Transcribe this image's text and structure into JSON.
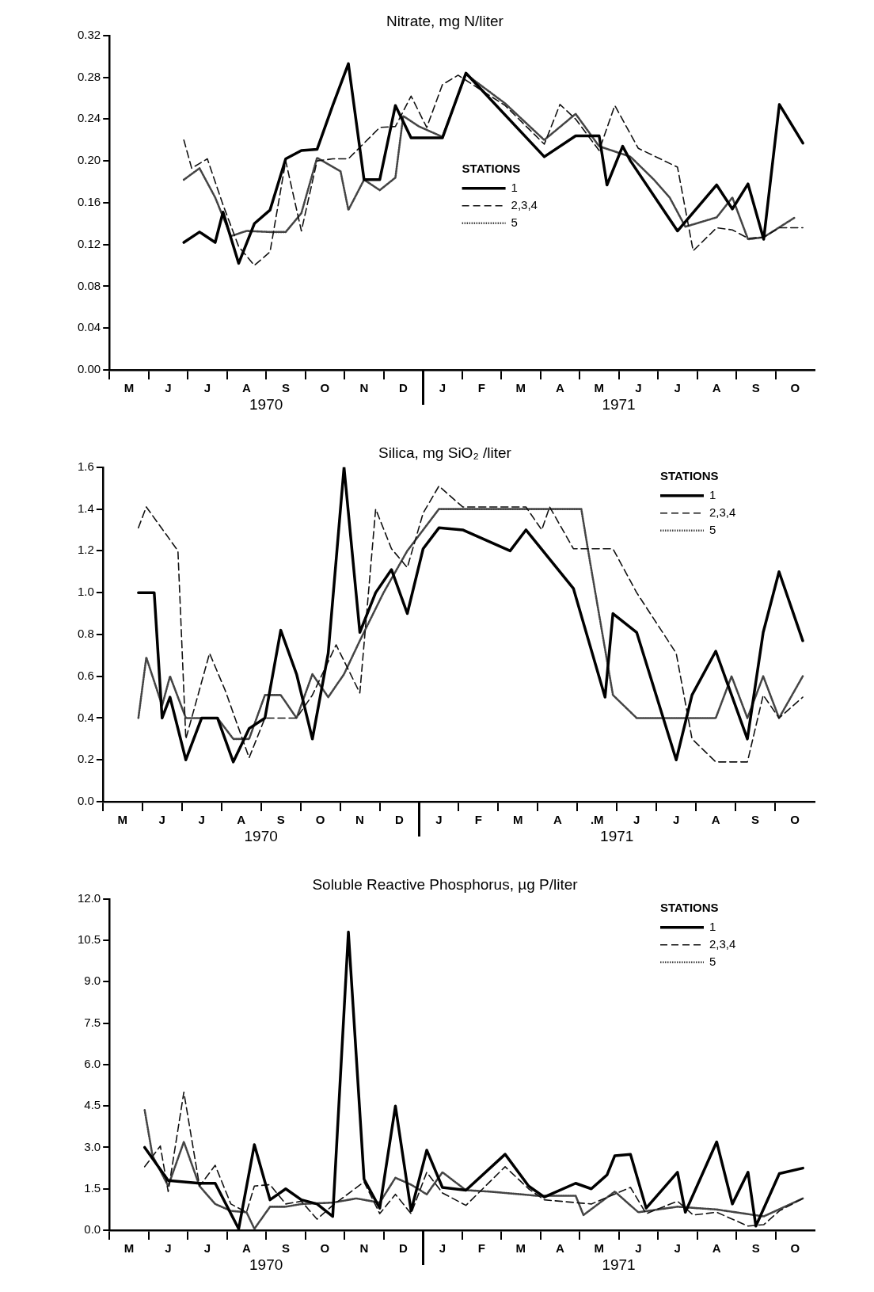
{
  "chart_data": [
    {
      "type": "line",
      "title": "Nitrate, mg N/liter",
      "legend": "center",
      "legend_title": "STATIONS",
      "grid": false,
      "categories": [
        null,
        null,
        "M",
        null,
        null,
        null,
        null,
        "J",
        null,
        null,
        null,
        null,
        "J",
        null,
        null,
        null,
        null,
        "A",
        null,
        null,
        null,
        null,
        "S",
        null,
        null,
        null,
        null,
        "O",
        null,
        null,
        null,
        null,
        "N",
        null,
        null,
        null,
        null,
        "D",
        null,
        null,
        null,
        null,
        "J",
        null,
        null,
        null,
        null,
        "F",
        null,
        null,
        null,
        null,
        "M",
        null,
        null,
        null,
        null,
        "A",
        null,
        null,
        null,
        null,
        "M",
        null,
        null,
        null,
        null,
        "J",
        null,
        null,
        null,
        null,
        "J",
        null,
        null,
        null,
        null,
        "A",
        null,
        null,
        null,
        null,
        "S",
        null,
        null,
        null,
        null,
        "O",
        null,
        null
      ],
      "ylim": [
        0,
        0.32
      ],
      "yticks": [
        {
          "value": 0,
          "label": "0.00"
        },
        {
          "value": 0.04,
          "label": "0.04"
        },
        {
          "value": 0.08,
          "label": "0.08"
        },
        {
          "value": 0.12,
          "label": "0.12"
        },
        {
          "value": 0.16,
          "label": "0.16"
        },
        {
          "value": 0.2,
          "label": "0.20"
        },
        {
          "value": 0.24,
          "label": "0.24"
        },
        {
          "value": 0.28,
          "label": "0.28"
        },
        {
          "value": 0.32,
          "label": "0.32"
        }
      ],
      "annotations": [
        "1970",
        "1971"
      ],
      "series": [
        {
          "name": "1",
          "color": "#000000",
          "line_style": "solid",
          "values": [
            null,
            null,
            null,
            null,
            null,
            null,
            null,
            null,
            null,
            0.122,
            null,
            0.132,
            null,
            0.122,
            0.151,
            null,
            0.102,
            null,
            0.14,
            null,
            0.153,
            null,
            0.202,
            null,
            0.21,
            null,
            0.211,
            null,
            0.253,
            null,
            0.293,
            null,
            0.182,
            null,
            0.182,
            null,
            0.253,
            null,
            0.222,
            null,
            null,
            null,
            0.222,
            null,
            null,
            0.284,
            null,
            null,
            null,
            null,
            null,
            null,
            null,
            null,
            null,
            0.204,
            null,
            null,
            null,
            0.224,
            null,
            null,
            0.224,
            0.177,
            null,
            0.214,
            0.2,
            null,
            null,
            null,
            null,
            null,
            0.133,
            null,
            null,
            null,
            null,
            0.177,
            null,
            0.154,
            null,
            0.178,
            null,
            0.125,
            null,
            0.254,
            null,
            null,
            0.217,
            null
          ]
        },
        {
          "name": "2,3,4",
          "color": "#111111",
          "line_style": "dashed",
          "values": [
            null,
            null,
            null,
            null,
            null,
            null,
            null,
            null,
            null,
            0.22,
            0.193,
            null,
            0.202,
            null,
            0.158,
            null,
            0.118,
            null,
            0.1,
            null,
            0.113,
            null,
            0.2,
            null,
            0.133,
            null,
            0.2,
            null,
            0.202,
            null,
            0.202,
            null,
            null,
            null,
            0.232,
            null,
            0.233,
            null,
            0.262,
            null,
            0.232,
            null,
            0.273,
            null,
            0.282,
            null,
            null,
            null,
            null,
            null,
            0.253,
            null,
            null,
            null,
            null,
            0.216,
            null,
            0.254,
            null,
            0.24,
            null,
            null,
            0.21,
            null,
            0.253,
            null,
            null,
            0.212,
            null,
            null,
            null,
            null,
            0.194,
            null,
            0.114,
            null,
            null,
            0.136,
            null,
            0.134,
            null,
            0.126,
            null,
            0.127,
            null,
            0.136,
            null,
            null,
            0.136,
            null
          ]
        },
        {
          "name": "5",
          "color": "#444444",
          "line_style": "dotted",
          "values": [
            null,
            null,
            null,
            null,
            null,
            null,
            null,
            null,
            null,
            0.182,
            null,
            0.193,
            null,
            0.165,
            null,
            0.128,
            null,
            0.133,
            null,
            null,
            0.132,
            null,
            0.132,
            null,
            0.15,
            null,
            0.203,
            null,
            null,
            0.19,
            0.153,
            null,
            0.182,
            null,
            0.172,
            null,
            0.184,
            0.243,
            null,
            0.233,
            null,
            null,
            0.223,
            null,
            null,
            0.283,
            null,
            null,
            null,
            null,
            0.255,
            null,
            null,
            null,
            null,
            0.22,
            null,
            null,
            null,
            0.245,
            null,
            null,
            0.214,
            null,
            null,
            null,
            0.204,
            null,
            null,
            0.182,
            null,
            0.165,
            null,
            0.137,
            null,
            null,
            null,
            0.146,
            null,
            0.165,
            null,
            0.125,
            null,
            0.127,
            null,
            null,
            null,
            0.146,
            null,
            null
          ]
        }
      ]
    },
    {
      "type": "line",
      "title": "Silica, mg SiO₂ /liter",
      "legend": "top right",
      "legend_title": "STATIONS",
      "grid": false,
      "categories": [
        null,
        null,
        "M",
        null,
        null,
        null,
        null,
        "J",
        null,
        null,
        null,
        null,
        "J",
        null,
        null,
        null,
        null,
        "A",
        null,
        null,
        null,
        null,
        "S",
        null,
        null,
        null,
        null,
        "O",
        null,
        null,
        null,
        null,
        "N",
        null,
        null,
        null,
        null,
        "D",
        null,
        null,
        null,
        null,
        "J",
        null,
        null,
        null,
        null,
        "F",
        null,
        null,
        null,
        null,
        "M",
        null,
        null,
        null,
        null,
        "A",
        null,
        null,
        null,
        null,
        ".M",
        null,
        null,
        null,
        null,
        "J",
        null,
        null,
        null,
        null,
        "J",
        null,
        null,
        null,
        null,
        "A",
        null,
        null,
        null,
        null,
        "S",
        null,
        null,
        null,
        null,
        "O",
        null,
        null
      ],
      "ylim": [
        0,
        1.6
      ],
      "yticks": [
        {
          "value": 0,
          "label": "0.0"
        },
        {
          "value": 0.2,
          "label": "0.2"
        },
        {
          "value": 0.4,
          "label": "0.4"
        },
        {
          "value": 0.6,
          "label": "0.6"
        },
        {
          "value": 0.8,
          "label": "0.8"
        },
        {
          "value": 1,
          "label": "1.0"
        },
        {
          "value": 1.2,
          "label": "1.2"
        },
        {
          "value": 1.4,
          "label": "1.4"
        },
        {
          "value": 1.6,
          "label": "1.6"
        }
      ],
      "annotations": [
        "1970",
        "1971"
      ],
      "series": [
        {
          "name": "1",
          "color": "#000000",
          "line_style": "solid",
          "values": [
            null,
            null,
            null,
            null,
            1.0,
            null,
            1.0,
            0.4,
            0.5,
            null,
            0.2,
            null,
            0.4,
            null,
            0.4,
            null,
            0.19,
            null,
            0.35,
            null,
            0.4,
            null,
            0.82,
            null,
            0.61,
            null,
            0.3,
            null,
            0.71,
            null,
            1.6,
            null,
            0.81,
            null,
            1.0,
            null,
            1.11,
            null,
            0.9,
            null,
            1.21,
            null,
            1.31,
            null,
            null,
            1.3,
            null,
            null,
            null,
            null,
            null,
            1.2,
            null,
            1.3,
            null,
            null,
            null,
            null,
            null,
            1.02,
            null,
            null,
            null,
            0.5,
            0.9,
            null,
            null,
            0.81,
            null,
            null,
            null,
            null,
            0.2,
            null,
            0.51,
            null,
            null,
            0.72,
            null,
            null,
            null,
            0.3,
            null,
            0.81,
            null,
            1.1,
            null,
            null,
            0.77,
            null
          ]
        },
        {
          "name": "2,3,4",
          "color": "#111111",
          "line_style": "dashed",
          "values": [
            null,
            null,
            null,
            null,
            1.31,
            1.41,
            null,
            null,
            null,
            1.2,
            0.3,
            null,
            null,
            0.71,
            null,
            0.53,
            null,
            null,
            0.21,
            null,
            0.4,
            null,
            null,
            null,
            0.4,
            null,
            0.51,
            null,
            null,
            0.75,
            null,
            null,
            0.52,
            null,
            1.4,
            null,
            1.21,
            null,
            1.12,
            null,
            1.38,
            null,
            1.51,
            null,
            null,
            1.41,
            null,
            null,
            null,
            null,
            null,
            null,
            null,
            1.41,
            null,
            1.3,
            1.41,
            null,
            null,
            1.21,
            null,
            null,
            null,
            null,
            1.21,
            null,
            null,
            1.0,
            null,
            null,
            null,
            null,
            0.71,
            null,
            0.3,
            null,
            null,
            0.19,
            null,
            null,
            null,
            0.19,
            null,
            0.51,
            null,
            0.4,
            null,
            null,
            0.5,
            null
          ]
        },
        {
          "name": "5",
          "color": "#444444",
          "line_style": "dotted",
          "values": [
            null,
            null,
            null,
            null,
            0.4,
            0.69,
            null,
            0.46,
            0.6,
            null,
            0.4,
            null,
            null,
            null,
            0.4,
            null,
            0.3,
            null,
            0.3,
            null,
            0.51,
            null,
            0.51,
            null,
            0.4,
            null,
            0.61,
            null,
            0.5,
            null,
            0.61,
            null,
            0.77,
            null,
            null,
            1.0,
            null,
            null,
            1.2,
            null,
            null,
            null,
            1.4,
            null,
            null,
            null,
            null,
            null,
            null,
            null,
            null,
            null,
            null,
            null,
            null,
            null,
            null,
            null,
            null,
            null,
            1.4,
            1.17,
            null,
            null,
            0.51,
            null,
            null,
            0.4,
            null,
            null,
            null,
            null,
            null,
            null,
            null,
            null,
            null,
            0.4,
            null,
            0.6,
            null,
            0.4,
            null,
            0.6,
            null,
            0.4,
            null,
            null,
            0.6,
            null
          ]
        }
      ]
    },
    {
      "type": "line",
      "title": "Soluble Reactive Phosphorus, µg P/liter",
      "legend": "top right",
      "legend_title": "STATIONS",
      "grid": false,
      "categories": [
        null,
        null,
        "M",
        null,
        null,
        null,
        null,
        "J",
        null,
        null,
        null,
        null,
        "J",
        null,
        null,
        null,
        null,
        "A",
        null,
        null,
        null,
        null,
        "S",
        null,
        null,
        null,
        null,
        "O",
        null,
        null,
        null,
        null,
        "N",
        null,
        null,
        null,
        null,
        "D",
        null,
        null,
        null,
        null,
        "J",
        null,
        null,
        null,
        null,
        "F",
        null,
        null,
        null,
        null,
        "M",
        null,
        null,
        null,
        null,
        "A",
        null,
        null,
        null,
        null,
        "M",
        null,
        null,
        null,
        null,
        "J",
        null,
        null,
        null,
        null,
        "J",
        null,
        null,
        null,
        null,
        "A",
        null,
        null,
        null,
        null,
        "S",
        null,
        null,
        null,
        null,
        "O",
        null,
        null
      ],
      "ylim": [
        0,
        12
      ],
      "yticks": [
        {
          "value": 0,
          "label": "0.0"
        },
        {
          "value": 1.5,
          "label": "1.5"
        },
        {
          "value": 3,
          "label": "3.0"
        },
        {
          "value": 4.5,
          "label": "4.5"
        },
        {
          "value": 6,
          "label": "6.0"
        },
        {
          "value": 7.5,
          "label": "7.5"
        },
        {
          "value": 9,
          "label": "9.0"
        },
        {
          "value": 10.5,
          "label": "10.5"
        },
        {
          "value": 12,
          "label": "12.0"
        }
      ],
      "annotations": [
        "1970",
        "1971"
      ],
      "series": [
        {
          "name": "1",
          "color": "#000000",
          "line_style": "solid",
          "values": [
            null,
            null,
            null,
            null,
            3.0,
            null,
            null,
            1.8,
            null,
            null,
            null,
            1.7,
            null,
            1.7,
            null,
            null,
            0.05,
            null,
            3.1,
            null,
            1.1,
            null,
            1.5,
            null,
            1.1,
            null,
            0.95,
            null,
            0.5,
            null,
            10.8,
            null,
            1.85,
            null,
            0.8,
            null,
            4.5,
            null,
            0.7,
            null,
            2.9,
            null,
            1.55,
            null,
            null,
            1.45,
            null,
            null,
            null,
            null,
            2.75,
            null,
            null,
            1.6,
            null,
            1.2,
            null,
            null,
            null,
            1.7,
            null,
            1.5,
            null,
            2.0,
            2.7,
            null,
            2.75,
            null,
            0.8,
            null,
            null,
            null,
            2.1,
            0.65,
            null,
            null,
            null,
            3.2,
            null,
            0.95,
            null,
            2.1,
            0.15,
            null,
            null,
            2.05,
            null,
            null,
            2.25,
            null
          ]
        },
        {
          "name": "2,3,4",
          "color": "#111111",
          "line_style": "dashed",
          "values": [
            null,
            null,
            null,
            null,
            2.3,
            null,
            3.05,
            1.4,
            null,
            5.0,
            null,
            1.6,
            null,
            2.35,
            null,
            0.95,
            null,
            0.65,
            1.6,
            null,
            1.65,
            null,
            0.95,
            null,
            1.05,
            null,
            0.4,
            null,
            0.9,
            null,
            null,
            null,
            1.75,
            null,
            0.6,
            null,
            1.3,
            null,
            0.6,
            null,
            2.1,
            null,
            1.35,
            null,
            null,
            0.9,
            null,
            null,
            null,
            null,
            2.3,
            null,
            null,
            1.5,
            null,
            1.1,
            null,
            null,
            null,
            null,
            null,
            0.95,
            null,
            null,
            null,
            null,
            1.55,
            null,
            0.6,
            null,
            null,
            null,
            1.05,
            null,
            0.55,
            null,
            null,
            0.65,
            null,
            null,
            null,
            0.15,
            null,
            0.2,
            null,
            0.7,
            null,
            null,
            1.15,
            null
          ]
        },
        {
          "name": "5",
          "color": "#444444",
          "line_style": "dotted",
          "values": [
            null,
            null,
            null,
            null,
            4.35,
            2.7,
            null,
            1.6,
            null,
            3.2,
            null,
            1.6,
            null,
            0.95,
            null,
            0.7,
            null,
            0.65,
            0.05,
            null,
            0.85,
            null,
            0.85,
            null,
            0.95,
            null,
            null,
            null,
            1.0,
            null,
            null,
            1.15,
            null,
            null,
            1.0,
            null,
            1.9,
            null,
            1.65,
            null,
            1.3,
            null,
            2.1,
            null,
            null,
            1.45,
            null,
            null,
            1.4,
            null,
            null,
            null,
            null,
            null,
            1.25,
            null,
            null,
            null,
            null,
            1.25,
            0.55,
            null,
            null,
            null,
            1.4,
            null,
            null,
            0.65,
            null,
            null,
            null,
            null,
            0.85,
            null,
            null,
            null,
            null,
            0.75,
            null,
            null,
            null,
            null,
            null,
            0.5,
            null,
            null,
            null,
            null,
            1.15,
            null
          ]
        }
      ]
    }
  ]
}
